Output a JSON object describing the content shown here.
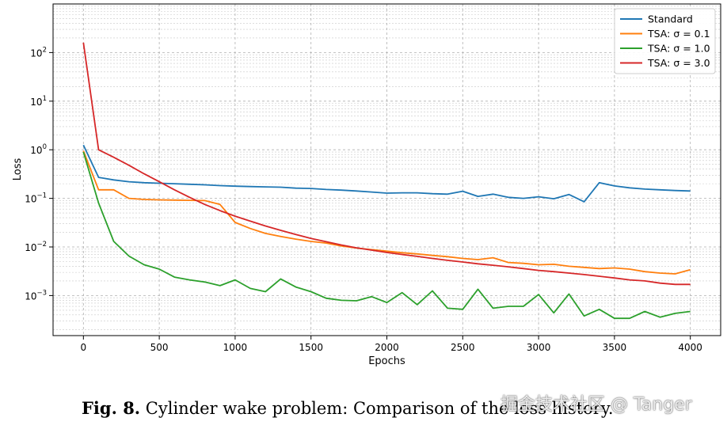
{
  "chart_data": {
    "type": "line",
    "title": "",
    "xlabel": "Epochs",
    "ylabel": "Loss",
    "yscale": "log",
    "xlim": [
      -200,
      4200
    ],
    "ylim": [
      0.00015,
      1000
    ],
    "xticks": [
      0,
      500,
      1000,
      1500,
      2000,
      2500,
      3000,
      3500,
      4000
    ],
    "xtick_labels": [
      "0",
      "500",
      "1000",
      "1500",
      "2000",
      "2500",
      "3000",
      "3500",
      "4000"
    ],
    "yticks": [
      0.001,
      0.01,
      0.1,
      1,
      10,
      100
    ],
    "ytick_labels": [
      {
        "base": "10",
        "exp": "−3"
      },
      {
        "base": "10",
        "exp": "−2"
      },
      {
        "base": "10",
        "exp": "−1"
      },
      {
        "base": "10",
        "exp": "0"
      },
      {
        "base": "10",
        "exp": "1"
      },
      {
        "base": "10",
        "exp": "2"
      }
    ],
    "grid": true,
    "legend_position": "upper-right",
    "series": [
      {
        "name": "Standard",
        "color": "#1f77b4",
        "x": [
          0,
          100,
          200,
          300,
          400,
          500,
          600,
          700,
          800,
          900,
          1000,
          1100,
          1200,
          1300,
          1400,
          1500,
          1600,
          1700,
          1800,
          1900,
          2000,
          2100,
          2200,
          2300,
          2400,
          2500,
          2600,
          2700,
          2800,
          2900,
          3000,
          3100,
          3200,
          3300,
          3400,
          3500,
          3600,
          3700,
          3800,
          3900,
          4000
        ],
        "y": [
          1.25,
          0.27,
          0.24,
          0.22,
          0.21,
          0.205,
          0.2,
          0.195,
          0.19,
          0.183,
          0.178,
          0.175,
          0.172,
          0.17,
          0.162,
          0.16,
          0.152,
          0.148,
          0.142,
          0.135,
          0.128,
          0.13,
          0.13,
          0.125,
          0.122,
          0.14,
          0.11,
          0.122,
          0.105,
          0.1,
          0.108,
          0.098,
          0.12,
          0.085,
          0.21,
          0.18,
          0.165,
          0.155,
          0.15,
          0.145,
          0.142
        ]
      },
      {
        "name": "TSA: σ = 0.1",
        "color": "#ff7f0e",
        "x": [
          0,
          100,
          200,
          300,
          400,
          500,
          600,
          700,
          800,
          900,
          1000,
          1100,
          1200,
          1300,
          1400,
          1500,
          1600,
          1700,
          1800,
          1900,
          2000,
          2100,
          2200,
          2300,
          2400,
          2500,
          2600,
          2700,
          2800,
          2900,
          3000,
          3100,
          3200,
          3300,
          3400,
          3500,
          3600,
          3700,
          3800,
          3900,
          4000
        ],
        "y": [
          0.95,
          0.15,
          0.15,
          0.1,
          0.095,
          0.093,
          0.092,
          0.091,
          0.09,
          0.075,
          0.032,
          0.024,
          0.019,
          0.0165,
          0.0145,
          0.013,
          0.012,
          0.0105,
          0.0095,
          0.0088,
          0.0082,
          0.0076,
          0.0072,
          0.0067,
          0.0063,
          0.0058,
          0.0055,
          0.006,
          0.0048,
          0.0046,
          0.0043,
          0.0044,
          0.004,
          0.0038,
          0.0036,
          0.0037,
          0.0035,
          0.0031,
          0.0029,
          0.0028,
          0.0034
        ]
      },
      {
        "name": "TSA: σ = 1.0",
        "color": "#2ca02c",
        "x": [
          0,
          100,
          200,
          300,
          400,
          500,
          600,
          700,
          800,
          900,
          1000,
          1100,
          1200,
          1300,
          1400,
          1500,
          1600,
          1700,
          1800,
          1900,
          2000,
          2100,
          2200,
          2300,
          2400,
          2500,
          2600,
          2700,
          2800,
          2900,
          3000,
          3100,
          3200,
          3300,
          3400,
          3500,
          3600,
          3700,
          3800,
          3900,
          4000
        ],
        "y": [
          0.9,
          0.08,
          0.013,
          0.0065,
          0.0043,
          0.0035,
          0.0024,
          0.0021,
          0.0019,
          0.0016,
          0.0021,
          0.0014,
          0.0012,
          0.0022,
          0.0015,
          0.0012,
          0.00088,
          0.0008,
          0.00078,
          0.00095,
          0.00072,
          0.00115,
          0.00065,
          0.00125,
          0.00055,
          0.00052,
          0.00135,
          0.00055,
          0.0006,
          0.0006,
          0.00105,
          0.00044,
          0.00108,
          0.00038,
          0.00052,
          0.00034,
          0.00034,
          0.00047,
          0.00036,
          0.00043,
          0.00047
        ]
      },
      {
        "name": "TSA: σ = 3.0",
        "color": "#d62728",
        "x": [
          0,
          100,
          200,
          300,
          400,
          500,
          600,
          700,
          800,
          900,
          1000,
          1100,
          1200,
          1300,
          1400,
          1500,
          1600,
          1700,
          1800,
          1900,
          2000,
          2100,
          2200,
          2300,
          2400,
          2500,
          2600,
          2700,
          2800,
          2900,
          3000,
          3100,
          3200,
          3300,
          3400,
          3500,
          3600,
          3700,
          3800,
          3900,
          4000
        ],
        "y": [
          160,
          1.0,
          0.7,
          0.48,
          0.32,
          0.22,
          0.15,
          0.105,
          0.075,
          0.056,
          0.043,
          0.034,
          0.027,
          0.022,
          0.018,
          0.015,
          0.0128,
          0.011,
          0.0096,
          0.0086,
          0.0077,
          0.007,
          0.0064,
          0.0058,
          0.0053,
          0.0049,
          0.0045,
          0.0042,
          0.0039,
          0.0036,
          0.0033,
          0.0031,
          0.0029,
          0.0027,
          0.0025,
          0.0023,
          0.0021,
          0.002,
          0.0018,
          0.0017,
          0.0017
        ]
      }
    ]
  },
  "caption": {
    "label": "Fig. 8.",
    "text": " Cylinder wake problem: Comparison of the loss history."
  },
  "watermark": "掘金技术社区 @ Tanger"
}
